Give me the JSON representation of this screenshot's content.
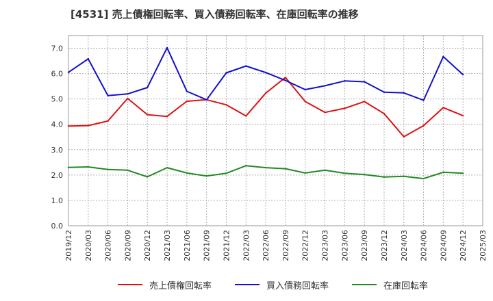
{
  "chart_data": {
    "type": "line",
    "title": "[4531]  売上債権回転率、買入債務回転率、在庫回転率の推移",
    "xlabel": "",
    "ylabel": "",
    "ylim": [
      0,
      7.5
    ],
    "yticks": [
      "0.0",
      "1.0",
      "2.0",
      "3.0",
      "4.0",
      "5.0",
      "6.0",
      "7.0"
    ],
    "x": [
      "2019/12",
      "2020/03",
      "2020/06",
      "2020/09",
      "2020/12",
      "2021/03",
      "2021/06",
      "2021/09",
      "2021/12",
      "2022/03",
      "2022/06",
      "2022/09",
      "2022/12",
      "2023/03",
      "2023/06",
      "2023/09",
      "2023/12",
      "2024/03",
      "2024/06",
      "2024/09",
      "2024/12",
      "2025/03"
    ],
    "series": [
      {
        "name": "売上債権回転率",
        "color": "#dd1111",
        "values": [
          3.93,
          3.95,
          4.13,
          5.02,
          4.38,
          4.31,
          4.91,
          4.97,
          4.77,
          4.33,
          5.23,
          5.85,
          4.9,
          4.47,
          4.63,
          4.9,
          4.42,
          3.51,
          3.95,
          4.66,
          4.34,
          null
        ]
      },
      {
        "name": "買入債務回転率",
        "color": "#1111cc",
        "values": [
          6.05,
          6.58,
          5.13,
          5.2,
          5.45,
          7.02,
          5.3,
          4.97,
          6.03,
          6.3,
          6.04,
          5.73,
          5.37,
          5.52,
          5.71,
          5.68,
          5.27,
          5.24,
          4.95,
          6.67,
          5.96,
          null
        ]
      },
      {
        "name": "在庫回転率",
        "color": "#228822",
        "values": [
          2.3,
          2.32,
          2.22,
          2.19,
          1.93,
          2.29,
          2.08,
          1.96,
          2.07,
          2.37,
          2.29,
          2.25,
          2.08,
          2.19,
          2.07,
          2.02,
          1.92,
          1.95,
          1.86,
          2.11,
          2.07,
          null
        ]
      }
    ],
    "legend_position": "bottom",
    "grid": true
  }
}
